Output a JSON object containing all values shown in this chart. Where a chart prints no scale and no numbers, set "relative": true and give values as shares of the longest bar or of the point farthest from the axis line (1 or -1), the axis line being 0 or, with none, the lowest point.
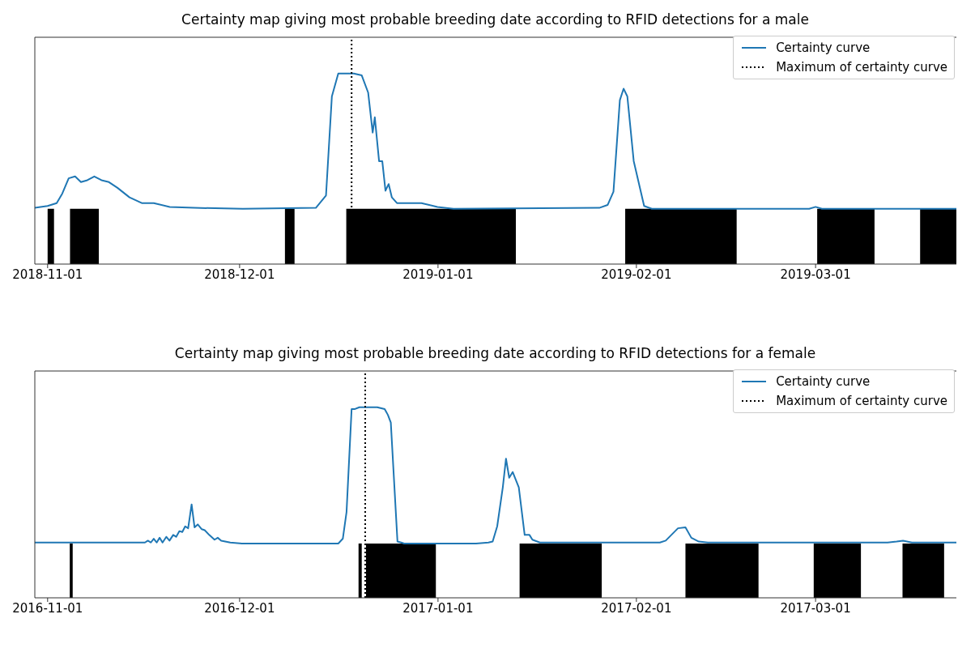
{
  "chart_data": [
    {
      "type": "line",
      "title": "Certainty map giving most probable breeding date according to RFID detections for a male",
      "relative": true,
      "xlim": [
        "2018-10-30",
        "2019-03-23"
      ],
      "xticks": [
        "2018-11-01",
        "2018-12-01",
        "2019-01-01",
        "2019-02-01",
        "2019-03-01"
      ],
      "legend": "top right",
      "series": [
        {
          "name": "Certainty curve",
          "color": "#1f77b4",
          "x": [
            "2018-10-30",
            "2018-11-01",
            "2018-11-02T10:00",
            "2018-11-03T07:00",
            "2018-11-04T07:00",
            "2018-11-05T07:00",
            "2018-11-06T05:00",
            "2018-11-07T05:00",
            "2018-11-08T07:00",
            "2018-11-09T10:00",
            "2018-11-10T14:00",
            "2018-11-11T22:00",
            "2018-11-13T19:00",
            "2018-11-15T17:00",
            "2018-11-17T14:00",
            "2018-11-20T02:00",
            "2018-11-23T22:00",
            "2018-12-01T12:00",
            "2018-12-12T22:00",
            "2018-12-14T12:00",
            "2018-12-15T10:00",
            "2018-12-16T10:00",
            "2018-12-18T20:00",
            "2018-12-20T02:00",
            "2018-12-21T02:00",
            "2018-12-21T19:00",
            "2018-12-22T03:00",
            "2018-12-22T19:00",
            "2018-12-23T07:00",
            "2018-12-23T19:00",
            "2018-12-24T07:00",
            "2018-12-24T19:00",
            "2018-12-25T14:00",
            "2018-12-29T10:00",
            "2018-12-31T22:00",
            "2019-01-03T10:00",
            "2019-01-26T05:00",
            "2019-01-27T12:00",
            "2019-01-28T10:00",
            "2019-01-29T10:00",
            "2019-01-30",
            "2019-01-30T14:00",
            "2019-01-31T14:00",
            "2019-02-02T05:00",
            "2019-02-03T10:00",
            "2019-02-28",
            "2019-03-01",
            "2019-03-02",
            "2019-03-23"
          ],
          "values": [
            0.295,
            0.305,
            0.32,
            0.37,
            0.45,
            0.46,
            0.43,
            0.44,
            0.46,
            0.44,
            0.43,
            0.4,
            0.35,
            0.32,
            0.32,
            0.3,
            0.295,
            0.29,
            0.295,
            0.36,
            0.88,
            1.0,
            1.0,
            0.99,
            0.9,
            0.69,
            0.77,
            0.54,
            0.54,
            0.385,
            0.42,
            0.35,
            0.32,
            0.32,
            0.3,
            0.29,
            0.295,
            0.31,
            0.38,
            0.86,
            0.92,
            0.88,
            0.54,
            0.305,
            0.29,
            0.29,
            0.3,
            0.29,
            0.29
          ]
        }
      ],
      "ref_lines": [
        {
          "axis": "x",
          "value": "2018-12-18T12:00",
          "label": "Maximum of certainty curve",
          "color": "#000000",
          "line_style": "dotted"
        }
      ],
      "bands": [
        {
          "axis": "x",
          "from": "2018-11-01",
          "to": "2018-11-02",
          "color": "#000000"
        },
        {
          "axis": "x",
          "from": "2018-11-04T12:00",
          "to": "2018-11-09",
          "color": "#000000"
        },
        {
          "axis": "x",
          "from": "2018-12-08T02:00",
          "to": "2018-12-09T14:00",
          "color": "#000000"
        },
        {
          "axis": "x",
          "from": "2018-12-17T16:00",
          "to": "2019-01-13T04:00",
          "color": "#000000"
        },
        {
          "axis": "x",
          "from": "2019-01-30T06:00",
          "to": "2019-02-16T16:00",
          "color": "#000000"
        },
        {
          "axis": "x",
          "from": "2019-03-01T06:00",
          "to": "2019-03-10T05:00",
          "color": "#000000"
        },
        {
          "axis": "x",
          "from": "2019-03-17T08:00",
          "to": "2019-03-23",
          "color": "#000000"
        }
      ]
    },
    {
      "type": "line",
      "title": "Certainty map giving most probable breeding date according to RFID detections for a female",
      "relative": true,
      "xlim": [
        "2016-10-30",
        "2017-03-23"
      ],
      "xticks": [
        "2016-11-01",
        "2016-12-01",
        "2017-01-01",
        "2017-02-01",
        "2017-03-01"
      ],
      "legend": "top right",
      "series": [
        {
          "name": "Certainty curve",
          "color": "#1f77b4",
          "x": [
            "2016-10-30",
            "2016-11-03T16:00",
            "2016-11-16T05:00",
            "2016-11-16T16:00",
            "2016-11-17T03:00",
            "2016-11-17T14:00",
            "2016-11-18T01:00",
            "2016-11-18T12:00",
            "2016-11-18T23:00",
            "2016-11-19T13:00",
            "2016-11-20T01:00",
            "2016-11-20T15:00",
            "2016-11-21T02:00",
            "2016-11-21T14:00",
            "2016-11-22T01:00",
            "2016-11-22T12:00",
            "2016-11-22T23:00",
            "2016-11-23T12:00",
            "2016-11-23T23:00",
            "2016-11-24T11:00",
            "2016-11-25T02:00",
            "2016-11-25T13:00",
            "2016-11-26T06:00",
            "2016-11-27T02:00",
            "2016-11-27T14:00",
            "2016-11-28T03:00",
            "2016-11-29T13:00",
            "2016-12-01T09:00",
            "2016-12-16T10:00",
            "2016-12-17T03:00",
            "2016-12-17T17:00",
            "2016-12-18T12:00",
            "2016-12-18T23:00",
            "2016-12-19T17:00",
            "2016-12-22T12:00",
            "2016-12-23T16:00",
            "2016-12-24T04:00",
            "2016-12-24T15:00",
            "2016-12-25T16:00",
            "2016-12-26T06:00",
            "2016-12-26T17:00",
            "2017-01-06T23:00",
            "2017-01-08T21:00",
            "2017-01-09T13:00",
            "2017-01-10T06:00",
            "2017-01-11T03:00",
            "2017-01-11T15:00",
            "2017-01-12T03:00",
            "2017-01-12T16:00",
            "2017-01-13T15:00",
            "2017-01-14T13:00",
            "2017-01-15T07:00",
            "2017-01-15T18:00",
            "2017-01-16T22:00",
            "2017-01-17T20:00",
            "2017-02-04T16:00",
            "2017-02-05T14:00",
            "2017-02-07T12:00",
            "2017-02-08T16:00",
            "2017-02-09T14:00",
            "2017-02-10T18:00",
            "2017-02-12T04:00",
            "2017-03-12T06:00",
            "2017-03-13T16:00",
            "2017-03-14T16:00",
            "2017-03-16T01:00",
            "2017-03-23"
          ],
          "values": [
            0.29,
            0.29,
            0.29,
            0.3,
            0.29,
            0.31,
            0.29,
            0.315,
            0.29,
            0.32,
            0.3,
            0.33,
            0.32,
            0.35,
            0.345,
            0.375,
            0.365,
            0.49,
            0.37,
            0.385,
            0.36,
            0.355,
            0.33,
            0.305,
            0.315,
            0.3,
            0.29,
            0.285,
            0.285,
            0.31,
            0.45,
            0.99,
            0.99,
            1.0,
            1.0,
            0.99,
            0.96,
            0.92,
            0.295,
            0.29,
            0.285,
            0.285,
            0.29,
            0.295,
            0.375,
            0.58,
            0.73,
            0.63,
            0.66,
            0.58,
            0.33,
            0.33,
            0.305,
            0.29,
            0.29,
            0.29,
            0.3,
            0.365,
            0.37,
            0.315,
            0.295,
            0.29,
            0.29,
            0.295,
            0.3,
            0.29,
            0.29
          ]
        }
      ],
      "ref_lines": [
        {
          "axis": "x",
          "value": "2016-12-20T15:00",
          "label": "Maximum of certainty curve",
          "color": "#000000",
          "line_style": "dotted"
        }
      ],
      "bands": [
        {
          "axis": "x",
          "from": "2016-11-04T11:00",
          "to": "2016-11-04T22:00",
          "color": "#000000"
        },
        {
          "axis": "x",
          "from": "2016-12-19T14:00",
          "to": "2016-12-20T02:00",
          "color": "#000000"
        },
        {
          "axis": "x",
          "from": "2016-12-20T18:00",
          "to": "2016-12-31T16:00",
          "color": "#000000"
        },
        {
          "axis": "x",
          "from": "2017-01-13T18:00",
          "to": "2017-01-26T14:00",
          "color": "#000000"
        },
        {
          "axis": "x",
          "from": "2017-02-08T16:00",
          "to": "2017-02-20T02:00",
          "color": "#000000"
        },
        {
          "axis": "x",
          "from": "2017-02-28T17:00",
          "to": "2017-03-08T02:00",
          "color": "#000000"
        },
        {
          "axis": "x",
          "from": "2017-03-14T14:00",
          "to": "2017-03-21T02:00",
          "color": "#000000"
        }
      ]
    }
  ]
}
